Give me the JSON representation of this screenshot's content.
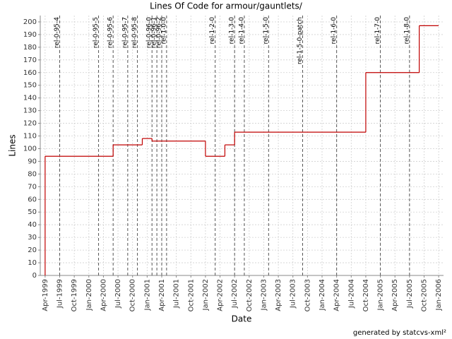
{
  "chart_data": {
    "type": "line",
    "step": true,
    "title": "Lines Of Code for armour/gauntlets/",
    "x_label": "Date",
    "y_label": "Lines",
    "footer": "generated by statcvs-xml²",
    "x": [
      "1999-04",
      "1999-04",
      "2000-06",
      "2000-12",
      "2001-02",
      "2002-01",
      "2002-05",
      "2002-07",
      "2004-10",
      "2005-09",
      "2006-01"
    ],
    "series": [
      {
        "color": "#c00000",
        "values": [
          0,
          94,
          103,
          108,
          106,
          94,
          103,
          113,
          160,
          197,
          197
        ]
      }
    ],
    "markers": [
      {
        "label": "rel-0-95-4",
        "x": "1999-07"
      },
      {
        "label": "rel-0-95-5",
        "x": "2000-03"
      },
      {
        "label": "rel-0-95-6",
        "x": "2000-06"
      },
      {
        "label": "rel-0-95-7",
        "x": "2000-09"
      },
      {
        "label": "rel-0-95-8",
        "x": "2000-11"
      },
      {
        "label": "rel-0-96-0",
        "x": "2001-02"
      },
      {
        "label": "rel-0-96-1",
        "x": "2001-03"
      },
      {
        "label": "rel-0-96-2",
        "x": "2001-04"
      },
      {
        "label": "rel-1-0-0",
        "x": "2001-05"
      },
      {
        "label": "rel-1-2-0",
        "x": "2002-03"
      },
      {
        "label": "rel-1-3-0",
        "x": "2002-07"
      },
      {
        "label": "rel-1-4-0",
        "x": "2002-09"
      },
      {
        "label": "rel-1-5-0",
        "x": "2003-02"
      },
      {
        "label": "rel-1-5-0-patch",
        "x": "2003-09"
      },
      {
        "label": "rel-1-6-0",
        "x": "2004-04"
      },
      {
        "label": "rel-1-7-0",
        "x": "2005-01"
      },
      {
        "label": "rel-1-8-0",
        "x": "2005-07"
      }
    ],
    "xlim": [
      "1999-03",
      "2006-02"
    ],
    "xticks": [
      {
        "value": "1999-04",
        "label": "Apr-1999"
      },
      {
        "value": "1999-07",
        "label": "Jul-1999"
      },
      {
        "value": "1999-10",
        "label": "Oct-1999"
      },
      {
        "value": "2000-01",
        "label": "Jan-2000"
      },
      {
        "value": "2000-04",
        "label": "Apr-2000"
      },
      {
        "value": "2000-07",
        "label": "Jul-2000"
      },
      {
        "value": "2000-10",
        "label": "Oct-2000"
      },
      {
        "value": "2001-01",
        "label": "Jan-2001"
      },
      {
        "value": "2001-04",
        "label": "Apr-2001"
      },
      {
        "value": "2001-07",
        "label": "Jul-2001"
      },
      {
        "value": "2001-10",
        "label": "Oct-2001"
      },
      {
        "value": "2002-01",
        "label": "Jan-2002"
      },
      {
        "value": "2002-04",
        "label": "Apr-2002"
      },
      {
        "value": "2002-07",
        "label": "Jul-2002"
      },
      {
        "value": "2002-10",
        "label": "Oct-2002"
      },
      {
        "value": "2003-01",
        "label": "Jan-2003"
      },
      {
        "value": "2003-04",
        "label": "Apr-2003"
      },
      {
        "value": "2003-07",
        "label": "Jul-2003"
      },
      {
        "value": "2003-10",
        "label": "Oct-2003"
      },
      {
        "value": "2004-01",
        "label": "Jan-2004"
      },
      {
        "value": "2004-04",
        "label": "Apr-2004"
      },
      {
        "value": "2004-07",
        "label": "Jul-2004"
      },
      {
        "value": "2004-10",
        "label": "Oct-2004"
      },
      {
        "value": "2005-01",
        "label": "Jan-2005"
      },
      {
        "value": "2005-04",
        "label": "Apr-2005"
      },
      {
        "value": "2005-07",
        "label": "Jul-2005"
      },
      {
        "value": "2005-10",
        "label": "Oct-2005"
      },
      {
        "value": "2006-01",
        "label": "Jan-2006"
      }
    ],
    "ylim": [
      0,
      205
    ],
    "yticks": [
      0,
      10,
      20,
      30,
      40,
      50,
      60,
      70,
      80,
      90,
      100,
      110,
      120,
      130,
      140,
      150,
      160,
      170,
      180,
      190,
      200
    ],
    "grid": true
  }
}
